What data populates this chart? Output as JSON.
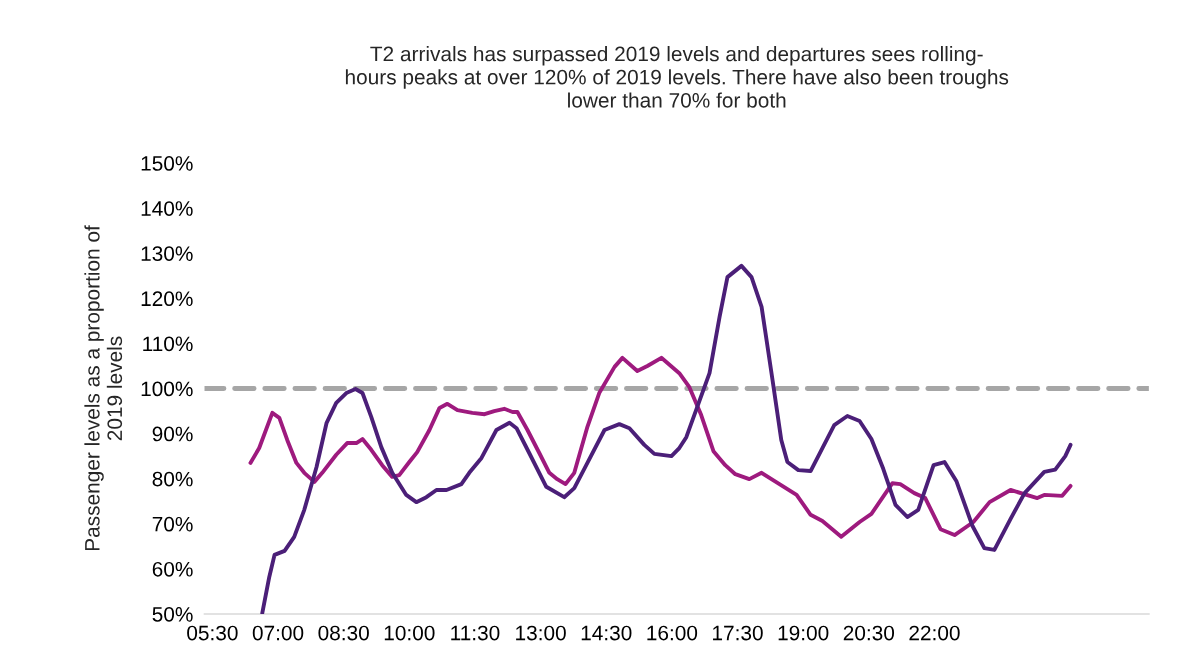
{
  "chart_data": {
    "type": "line",
    "title": "T2 arrivals has surpassed 2019 levels and departures sees rolling-\nhours peaks at over 120% of 2019 levels. There have also been troughs\nlower than 70% for both",
    "ylabel": "Passenger levels as a proportion of\n2019 levels",
    "xlim": [
      5.32,
      26.9
    ],
    "xticks": [
      {
        "value": 5.5,
        "label": "05:30"
      },
      {
        "value": 7,
        "label": "07:00"
      },
      {
        "value": 8.5,
        "label": "08:30"
      },
      {
        "value": 10,
        "label": "10:00"
      },
      {
        "value": 11.5,
        "label": "11:30"
      },
      {
        "value": 13,
        "label": "13:00"
      },
      {
        "value": 14.5,
        "label": "14:30"
      },
      {
        "value": 16,
        "label": "16:00"
      },
      {
        "value": 17.5,
        "label": "17:30"
      },
      {
        "value": 19,
        "label": "19:00"
      },
      {
        "value": 20.5,
        "label": "20:30"
      },
      {
        "value": 22,
        "label": "22:00"
      }
    ],
    "ylim": [
      50,
      150
    ],
    "yticks": [
      {
        "value": 50,
        "label": "50%"
      },
      {
        "value": 60,
        "label": "60%"
      },
      {
        "value": 70,
        "label": "70%"
      },
      {
        "value": 80,
        "label": "80%"
      },
      {
        "value": 90,
        "label": "90%"
      },
      {
        "value": 100,
        "label": "100%"
      },
      {
        "value": 110,
        "label": "110%"
      },
      {
        "value": 120,
        "label": "120%"
      },
      {
        "value": 130,
        "label": "130%"
      },
      {
        "value": 140,
        "label": "140%"
      },
      {
        "value": 150,
        "label": "150%"
      }
    ],
    "grid": false,
    "ref_lines": [
      {
        "axis": "y",
        "value": 100,
        "color": "#a6a6a6",
        "line_style": "dashed"
      }
    ],
    "series": [
      {
        "color": "#9e1a7e",
        "x": [
          6.37,
          6.57,
          6.87,
          7.03,
          7.21,
          7.42,
          7.6,
          7.83,
          8.01,
          8.33,
          8.58,
          8.79,
          8.93,
          9.13,
          9.38,
          9.61,
          9.77,
          10.0,
          10.18,
          10.46,
          10.69,
          10.87,
          11.1,
          11.44,
          11.72,
          11.94,
          12.17,
          12.36,
          12.47,
          12.7,
          12.97,
          13.2,
          13.38,
          13.57,
          13.77,
          14.07,
          14.34,
          14.69,
          14.87,
          15.21,
          15.44,
          15.76,
          16.17,
          16.4,
          16.67,
          16.95,
          17.22,
          17.45,
          17.77,
          18.05,
          18.34,
          18.85,
          19.17,
          19.44,
          19.87,
          20.29,
          20.56,
          21.04,
          21.22,
          21.54,
          21.79,
          22.14,
          22.46,
          22.89,
          23.26,
          23.74,
          24.35,
          24.51,
          24.92,
          25.11
        ],
        "values": [
          83.5,
          86.8,
          94.6,
          93.5,
          88.6,
          83.5,
          81.3,
          79.3,
          81.3,
          85.3,
          87.9,
          87.9,
          88.8,
          86.4,
          83.0,
          80.4,
          80.8,
          83.7,
          85.9,
          90.8,
          95.7,
          96.6,
          95.2,
          94.6,
          94.3,
          95.0,
          95.5,
          94.8,
          94.8,
          90.8,
          85.7,
          81.3,
          79.9,
          78.8,
          81.3,
          91.5,
          99.0,
          104.8,
          106.8,
          103.9,
          105.0,
          106.8,
          103.4,
          100.3,
          94.1,
          86.1,
          83.0,
          81.0,
          79.9,
          81.3,
          79.5,
          76.4,
          72.0,
          70.6,
          67.1,
          70.4,
          72.2,
          79.0,
          78.8,
          76.8,
          75.7,
          68.8,
          67.5,
          70.4,
          74.8,
          77.5,
          75.7,
          76.4,
          76.2,
          78.4
        ]
      },
      {
        "color": "#4b1f78",
        "x": [
          6.64,
          6.8,
          6.92,
          7.15,
          7.37,
          7.6,
          7.88,
          8.11,
          8.33,
          8.56,
          8.77,
          8.93,
          9.13,
          9.36,
          9.61,
          9.93,
          10.16,
          10.39,
          10.62,
          10.85,
          11.19,
          11.37,
          11.65,
          11.99,
          12.29,
          12.45,
          12.74,
          13.13,
          13.54,
          13.77,
          14.07,
          14.46,
          14.8,
          15.03,
          15.37,
          15.6,
          15.99,
          16.17,
          16.33,
          16.86,
          17.09,
          17.27,
          17.59,
          17.82,
          18.05,
          18.3,
          18.5,
          18.64,
          18.89,
          19.17,
          19.44,
          19.71,
          20.01,
          20.29,
          20.56,
          20.83,
          21.11,
          21.38,
          21.63,
          21.98,
          22.23,
          22.5,
          22.87,
          23.14,
          23.37,
          23.74,
          24.06,
          24.51,
          24.76,
          24.99,
          25.11
        ],
        "values": [
          50.2,
          58.2,
          63.1,
          64.0,
          67.1,
          73.1,
          82.6,
          92.4,
          96.8,
          99.0,
          99.9,
          99.0,
          93.7,
          87.0,
          81.3,
          76.4,
          74.8,
          75.9,
          77.5,
          77.5,
          78.8,
          81.3,
          84.6,
          90.8,
          92.4,
          91.2,
          85.7,
          78.2,
          75.9,
          77.9,
          83.5,
          90.8,
          92.1,
          91.2,
          87.5,
          85.5,
          85.0,
          86.8,
          89.2,
          103.4,
          115.9,
          124.7,
          127.2,
          124.7,
          118.1,
          101.9,
          88.6,
          83.7,
          81.9,
          81.7,
          86.8,
          91.9,
          93.9,
          92.8,
          88.8,
          82.2,
          74.2,
          71.5,
          73.1,
          83.0,
          83.7,
          79.5,
          69.5,
          64.6,
          64.2,
          71.1,
          76.8,
          81.5,
          82.0,
          85.0,
          87.5
        ]
      }
    ]
  }
}
